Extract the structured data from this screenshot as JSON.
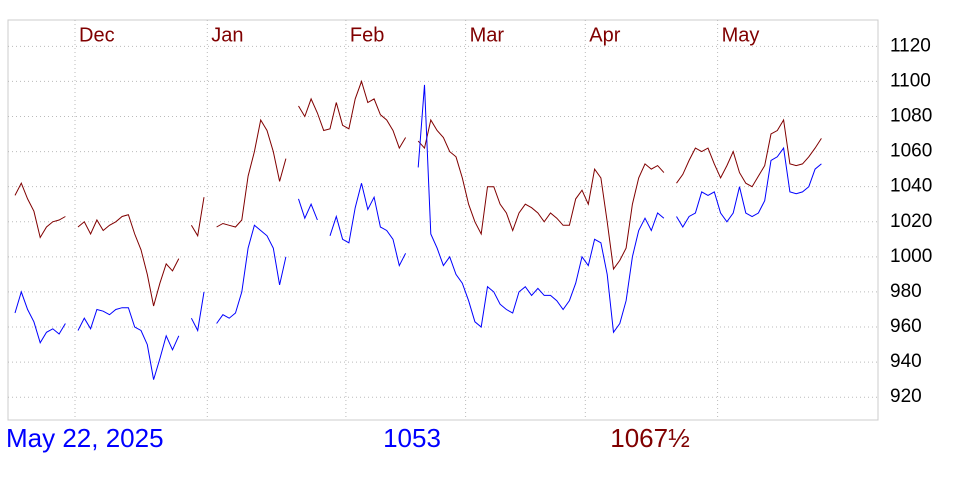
{
  "chart_data": {
    "type": "line",
    "categories": [
      null,
      null,
      null,
      null,
      null,
      null,
      null,
      null,
      null,
      null,
      "Dec",
      null,
      null,
      null,
      null,
      null,
      null,
      null,
      null,
      null,
      null,
      null,
      null,
      null,
      null,
      null,
      null,
      null,
      null,
      null,
      null,
      "Jan",
      null,
      null,
      null,
      null,
      null,
      null,
      null,
      null,
      null,
      null,
      null,
      null,
      null,
      null,
      null,
      null,
      null,
      null,
      null,
      null,
      null,
      "Feb",
      null,
      null,
      null,
      null,
      null,
      null,
      null,
      null,
      null,
      null,
      null,
      null,
      null,
      null,
      null,
      null,
      null,
      null,
      "Mar",
      null,
      null,
      null,
      null,
      null,
      null,
      null,
      null,
      null,
      null,
      null,
      null,
      null,
      null,
      null,
      null,
      null,
      null,
      "Apr",
      null,
      null,
      null,
      null,
      null,
      null,
      null,
      null,
      null,
      null,
      null,
      null,
      null,
      null,
      null,
      null,
      null,
      null,
      null,
      null,
      "May",
      null,
      null,
      null,
      null,
      null,
      null,
      null,
      null,
      null,
      null,
      null,
      null,
      null,
      null,
      null,
      null
    ],
    "series": [
      {
        "color": "#800000",
        "values": [
          1035,
          1042,
          1033,
          1026,
          1011,
          1017,
          1020,
          1021,
          1023,
          null,
          1017,
          1020,
          1013,
          1021,
          1015,
          1018,
          1020,
          1023,
          1024,
          1013,
          1004,
          990,
          972,
          985,
          996,
          992,
          999,
          null,
          1018,
          1012,
          1034,
          null,
          1017,
          1019,
          1018,
          1017,
          1021,
          1046,
          1060,
          1078,
          1072,
          1060,
          1043,
          1056,
          null,
          1086,
          1080,
          1090,
          1082,
          1072,
          1073,
          1088,
          1075,
          1073,
          1090,
          1100,
          1088,
          1090,
          1081,
          1078,
          1072,
          1062,
          1068,
          null,
          1066,
          1062,
          1078,
          1072,
          1068,
          1060,
          1057,
          1045,
          1030,
          1020,
          1013,
          1040,
          1040,
          1030,
          1025,
          1015,
          1025,
          1030,
          1028,
          1025,
          1020,
          1025,
          1022,
          1018,
          1018,
          1033,
          1038,
          1030,
          1050,
          1045,
          1020,
          993,
          998,
          1005,
          1030,
          1045,
          1053,
          1050,
          1052,
          1048,
          null,
          1042,
          1047,
          1055,
          1062,
          1060,
          1062,
          1053,
          1045,
          1052,
          1060,
          1048,
          1042,
          1040,
          1046,
          1052,
          1070,
          1072,
          1078,
          1053,
          1052,
          1053,
          1057,
          1062,
          1067.5
        ]
      },
      {
        "color": "#0000ff",
        "values": [
          968,
          980,
          970,
          963,
          951,
          957,
          959,
          956,
          962,
          null,
          958,
          965,
          959,
          970,
          969,
          967,
          970,
          971,
          971,
          960,
          958,
          950,
          930,
          942,
          955,
          947,
          955,
          null,
          965,
          958,
          980,
          null,
          962,
          967,
          965,
          968,
          980,
          1005,
          1018,
          1015,
          1012,
          1005,
          984,
          1000,
          null,
          1033,
          1022,
          1030,
          1021,
          null,
          1012,
          1023,
          1010,
          1008,
          1028,
          1042,
          1027,
          1034,
          1017,
          1015,
          1010,
          995,
          1002,
          null,
          1051,
          1098,
          1013,
          1005,
          995,
          1000,
          990,
          985,
          975,
          963,
          960,
          983,
          980,
          973,
          970,
          968,
          980,
          983,
          978,
          982,
          978,
          978,
          975,
          970,
          975,
          985,
          1000,
          995,
          1010,
          1008,
          990,
          957,
          962,
          975,
          1000,
          1015,
          1022,
          1015,
          1025,
          1022,
          null,
          1023,
          1017,
          1023,
          1025,
          1037,
          1035,
          1037,
          1025,
          1020,
          1025,
          1040,
          1025,
          1023,
          1025,
          1032,
          1055,
          1057,
          1062,
          1037,
          1036,
          1037,
          1040,
          1050,
          1053
        ]
      }
    ],
    "ylim": [
      907,
      1135
    ],
    "yticks": [
      920,
      940,
      960,
      980,
      1000,
      1020,
      1040,
      1060,
      1080,
      1100,
      1120
    ],
    "grid": true,
    "footer": {
      "date": "May 22, 2025",
      "last_blue": "1053",
      "last_red": "1067½"
    }
  }
}
